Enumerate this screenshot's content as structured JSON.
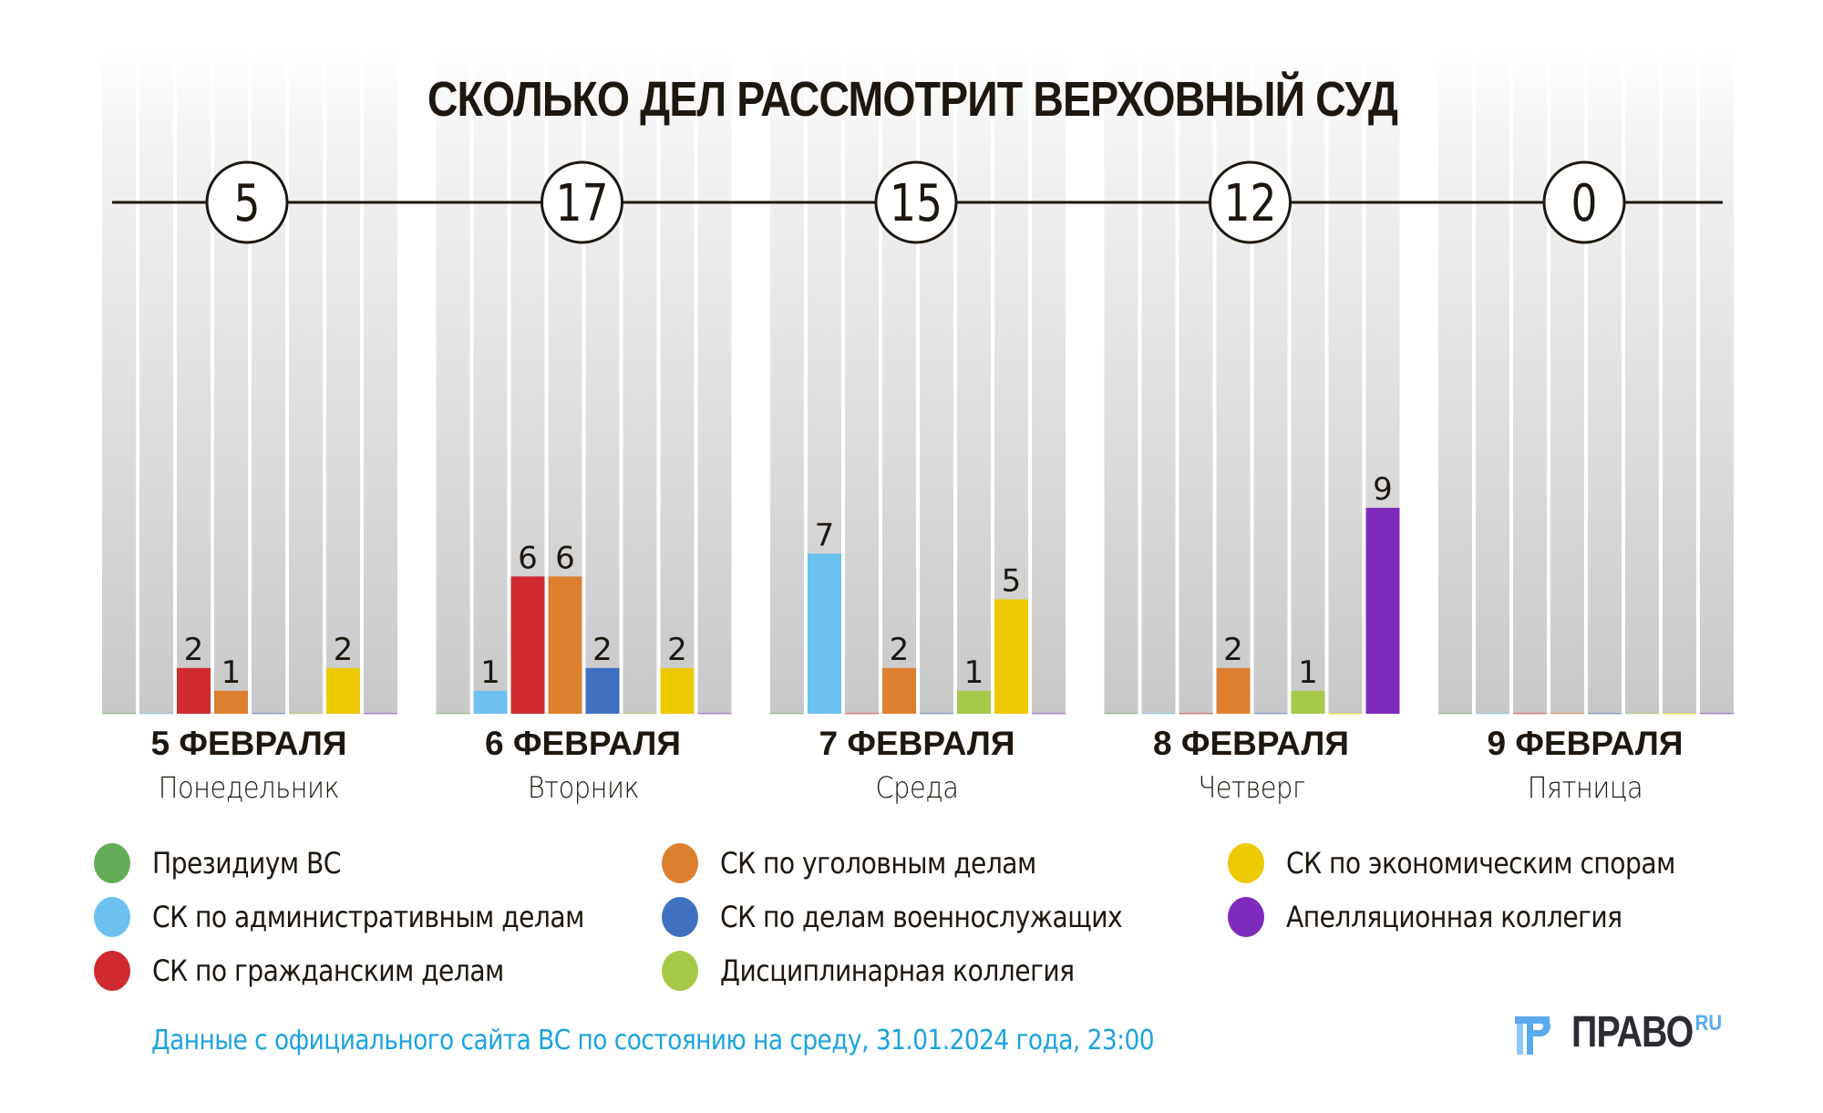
{
  "chart_data": {
    "type": "bar",
    "title": "СКОЛЬКО ДЕЛ РАССМОТРИТ ВЕРХОВНЫЙ СУД",
    "categories": [
      {
        "date": "5 ФЕВРАЛЯ",
        "weekday": "Понедельник",
        "total": "5"
      },
      {
        "date": "6 ФЕВРАЛЯ",
        "weekday": "Вторник",
        "total": "17"
      },
      {
        "date": "7 ФЕВРАЛЯ",
        "weekday": "Среда",
        "total": "15"
      },
      {
        "date": "8 ФЕВРАЛЯ",
        "weekday": "Четверг",
        "total": "12"
      },
      {
        "date": "9 ФЕВРАЛЯ",
        "weekday": "Пятница",
        "total": "0"
      }
    ],
    "series": [
      {
        "name": "Президиум ВС",
        "color": "#64ad56",
        "values": [
          0,
          0,
          0,
          0,
          0
        ]
      },
      {
        "name": "СК по административным делам",
        "color": "#6cc1f0",
        "values": [
          0,
          1,
          7,
          0,
          0
        ]
      },
      {
        "name": "СК по гражданским делам",
        "color": "#cf2a30",
        "values": [
          2,
          6,
          0,
          0,
          0
        ]
      },
      {
        "name": "СК по уголовным делам",
        "color": "#dc7f2e",
        "values": [
          1,
          6,
          2,
          2,
          0
        ]
      },
      {
        "name": "СК по делам военнослужащих",
        "color": "#4071c0",
        "values": [
          0,
          2,
          0,
          0,
          0
        ]
      },
      {
        "name": "Дисциплинарная коллегия",
        "color": "#a7c94a",
        "values": [
          0,
          0,
          1,
          1,
          0
        ]
      },
      {
        "name": "СК по экономическим спорам",
        "color": "#ecc900",
        "values": [
          2,
          2,
          5,
          0,
          0
        ]
      },
      {
        "name": "Апелляционная коллегия",
        "color": "#7e2bbd",
        "values": [
          0,
          0,
          0,
          9,
          0
        ]
      }
    ],
    "xlabel": "",
    "ylabel": "",
    "ylim": [
      0,
      20
    ],
    "grid": false,
    "legend_position": "bottom"
  },
  "legend_layout": [
    [
      0,
      1,
      2
    ],
    [
      3,
      4,
      5
    ],
    [
      6,
      7
    ]
  ],
  "footer": {
    "source": "Данные с официального сайта ВС по состоянию на среду, 31.01.2024 года, 23:00",
    "logo_text": "ПРАВО",
    "logo_suffix": "RU",
    "logo_accent": "#5aaaf0"
  }
}
